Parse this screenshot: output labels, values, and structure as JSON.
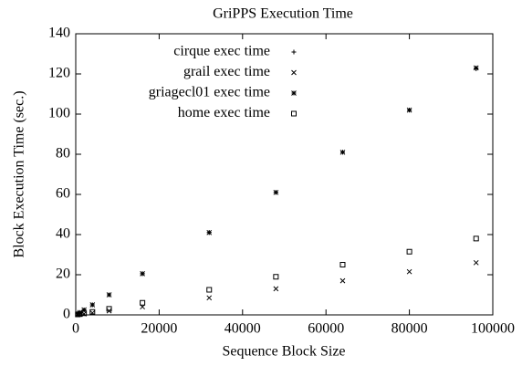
{
  "chart_data": {
    "type": "scatter",
    "title": "GriPPS Execution Time",
    "xlabel": "Sequence Block Size",
    "ylabel": "Block Execution Time (sec.)",
    "x": [
      500,
      1000,
      2000,
      4000,
      8000,
      16000,
      32000,
      48000,
      64000,
      80000,
      96000
    ],
    "series": [
      {
        "name": "cirque exec time",
        "color": "#000000",
        "marker": "+",
        "values": [
          0.6,
          1.2,
          2.5,
          5,
          10,
          20.5,
          41,
          61,
          81,
          102,
          122.5
        ]
      },
      {
        "name": "grail exec time",
        "color": "#000000",
        "marker": "x",
        "values": [
          0.1,
          0.3,
          0.5,
          1,
          2,
          4,
          8.5,
          13,
          17,
          21.5,
          26
        ]
      },
      {
        "name": "griagecl01 exec time",
        "color": "#000000",
        "marker": "*",
        "values": [
          0.6,
          1.2,
          2.5,
          5,
          10,
          20.5,
          41,
          61,
          81,
          102,
          123
        ]
      },
      {
        "name": "home exec time",
        "color": "#000000",
        "marker": "square",
        "values": [
          0.2,
          0.4,
          0.8,
          1.5,
          3,
          6,
          12.5,
          19,
          25,
          31.5,
          38
        ]
      }
    ],
    "xlim": [
      0,
      100000
    ],
    "xticks": [
      0,
      20000,
      40000,
      60000,
      80000,
      100000
    ],
    "ylim": [
      0,
      140
    ],
    "yticks": [
      0,
      20,
      40,
      60,
      80,
      100,
      120,
      140
    ],
    "legend": "upper left"
  }
}
